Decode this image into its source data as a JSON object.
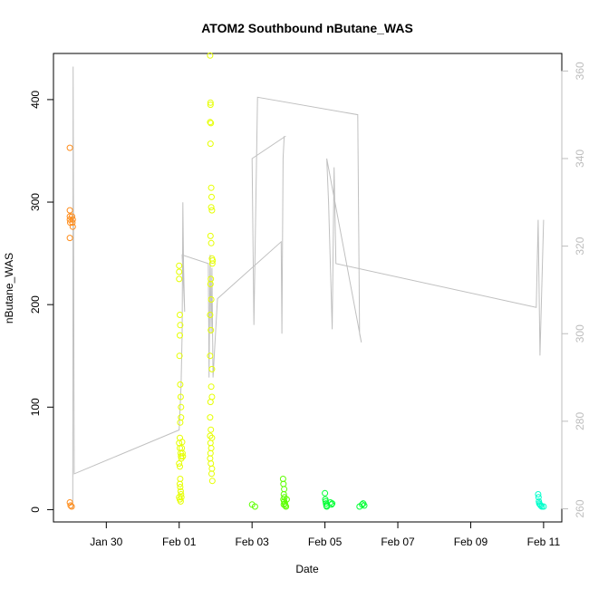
{
  "chart_data": {
    "type": "scatter",
    "title": "ATOM2 Southbound nButane_WAS",
    "xlabel": "Date",
    "ylabel": "nButane_WAS",
    "x_tick_labels": [
      "Jan 30",
      "Feb 01",
      "Feb 03",
      "Feb 05",
      "Feb 07",
      "Feb 09",
      "Feb 11"
    ],
    "x_tick_days": [
      2.0,
      4.0,
      6.0,
      8.0,
      10.0,
      12.0,
      14.0
    ],
    "y_ticks": [
      0,
      100,
      200,
      300,
      400
    ],
    "y2_ticks": [
      260,
      280,
      300,
      320,
      340,
      360
    ],
    "xlim_days": [
      0.55,
      14.5
    ],
    "ylim": [
      -12,
      445
    ],
    "y2lim": [
      257,
      364
    ],
    "grid": false,
    "colors": {
      "axis": "#000000",
      "right_axis": "#bdbdbd",
      "line": "#c0c0c0"
    },
    "series": [
      {
        "color": "#ff8c1a",
        "points": [
          [
            1.0,
            353
          ],
          [
            1.0,
            292
          ],
          [
            1.0,
            286
          ],
          [
            1.0,
            283
          ],
          [
            1.0,
            265
          ],
          [
            1.01,
            280
          ],
          [
            1.06,
            286
          ],
          [
            1.07,
            280
          ],
          [
            1.08,
            276
          ],
          [
            1.08,
            283
          ],
          [
            1.0,
            7
          ],
          [
            1.02,
            4
          ],
          [
            1.05,
            3
          ]
        ]
      },
      {
        "color": "#e6ff00",
        "points": [
          [
            4.0,
            238
          ],
          [
            4.0,
            232
          ],
          [
            4.0,
            225
          ],
          [
            4.02,
            190
          ],
          [
            4.03,
            180
          ],
          [
            4.02,
            170
          ],
          [
            4.01,
            150
          ],
          [
            4.03,
            122
          ],
          [
            4.04,
            110
          ],
          [
            4.05,
            100
          ],
          [
            4.05,
            90
          ],
          [
            4.03,
            85
          ],
          [
            4.02,
            70
          ],
          [
            4.0,
            65
          ],
          [
            4.02,
            60
          ],
          [
            4.04,
            55
          ],
          [
            4.05,
            52
          ],
          [
            4.06,
            50
          ],
          [
            4.07,
            60
          ],
          [
            4.08,
            66
          ],
          [
            4.09,
            55
          ],
          [
            4.1,
            52
          ],
          [
            4.0,
            45
          ],
          [
            4.02,
            42
          ],
          [
            4.03,
            30
          ],
          [
            4.02,
            25
          ],
          [
            4.03,
            22
          ],
          [
            4.04,
            18
          ],
          [
            4.05,
            15
          ],
          [
            4.0,
            12
          ],
          [
            4.02,
            10
          ],
          [
            4.04,
            8
          ],
          [
            4.06,
            12
          ],
          [
            4.85,
            443
          ],
          [
            4.86,
            397
          ],
          [
            4.86,
            395
          ],
          [
            4.85,
            378
          ],
          [
            4.87,
            377
          ],
          [
            4.86,
            357
          ],
          [
            4.88,
            314
          ],
          [
            4.89,
            305
          ],
          [
            4.88,
            295
          ],
          [
            4.9,
            292
          ],
          [
            4.86,
            267
          ],
          [
            4.88,
            260
          ],
          [
            4.9,
            245
          ],
          [
            4.92,
            243
          ],
          [
            4.91,
            240
          ],
          [
            4.87,
            225
          ],
          [
            4.86,
            220
          ],
          [
            4.88,
            205
          ],
          [
            4.85,
            190
          ],
          [
            4.87,
            175
          ],
          [
            4.85,
            150
          ],
          [
            4.9,
            137
          ],
          [
            4.88,
            120
          ],
          [
            4.9,
            110
          ],
          [
            4.86,
            105
          ],
          [
            4.85,
            90
          ],
          [
            4.87,
            78
          ],
          [
            4.85,
            72
          ],
          [
            4.86,
            65
          ],
          [
            4.9,
            70
          ],
          [
            4.88,
            60
          ],
          [
            4.86,
            55
          ],
          [
            4.85,
            50
          ],
          [
            4.87,
            45
          ],
          [
            4.9,
            40
          ],
          [
            4.89,
            35
          ],
          [
            4.91,
            28
          ]
        ]
      },
      {
        "color": "#5cff00",
        "points": [
          [
            6.0,
            5
          ],
          [
            6.08,
            3
          ],
          [
            6.85,
            30
          ],
          [
            6.86,
            25
          ],
          [
            6.88,
            20
          ],
          [
            6.87,
            15
          ],
          [
            6.89,
            12
          ],
          [
            6.86,
            10
          ],
          [
            6.88,
            8
          ],
          [
            6.9,
            6
          ],
          [
            6.87,
            5
          ],
          [
            6.91,
            4
          ],
          [
            6.93,
            3
          ],
          [
            6.95,
            10
          ]
        ]
      },
      {
        "color": "#00ff33",
        "points": [
          [
            8.0,
            16
          ],
          [
            8.01,
            10
          ],
          [
            8.02,
            8
          ],
          [
            8.03,
            6
          ],
          [
            8.04,
            4
          ],
          [
            8.05,
            3
          ],
          [
            8.15,
            7
          ],
          [
            8.18,
            5
          ],
          [
            8.2,
            6
          ],
          [
            8.95,
            3
          ],
          [
            9.02,
            5
          ],
          [
            9.05,
            6
          ],
          [
            9.08,
            4
          ]
        ]
      },
      {
        "color": "#00ffcc",
        "points": [
          [
            13.85,
            15
          ],
          [
            13.86,
            12
          ],
          [
            13.87,
            8
          ],
          [
            13.88,
            6
          ],
          [
            13.9,
            5
          ],
          [
            13.92,
            4
          ],
          [
            13.95,
            3
          ],
          [
            14.0,
            3
          ]
        ]
      }
    ],
    "line_series": {
      "axis": "right",
      "points": [
        [
          1.08,
          260
        ],
        [
          1.09,
          361
        ],
        [
          1.12,
          268
        ],
        [
          4.0,
          278
        ],
        [
          4.05,
          288
        ],
        [
          4.08,
          300
        ],
        [
          4.1,
          330
        ],
        [
          4.12,
          315
        ],
        [
          4.15,
          305
        ],
        [
          4.08,
          318
        ],
        [
          4.8,
          316
        ],
        [
          4.82,
          290
        ],
        [
          4.85,
          318
        ],
        [
          4.88,
          300
        ],
        [
          4.9,
          315
        ],
        [
          4.93,
          290
        ],
        [
          5.05,
          308
        ],
        [
          6.8,
          321
        ],
        [
          6.82,
          300
        ],
        [
          6.85,
          340
        ],
        [
          6.88,
          345
        ],
        [
          6.9,
          345
        ],
        [
          6.0,
          340
        ],
        [
          6.05,
          302
        ],
        [
          6.15,
          354
        ],
        [
          8.9,
          350
        ],
        [
          8.95,
          300
        ],
        [
          9.0,
          298
        ],
        [
          8.05,
          340
        ],
        [
          8.1,
          330
        ],
        [
          8.2,
          301
        ],
        [
          8.25,
          338
        ],
        [
          8.3,
          316
        ],
        [
          13.8,
          306
        ],
        [
          13.85,
          326
        ],
        [
          13.9,
          295
        ],
        [
          14.0,
          326
        ]
      ]
    }
  }
}
